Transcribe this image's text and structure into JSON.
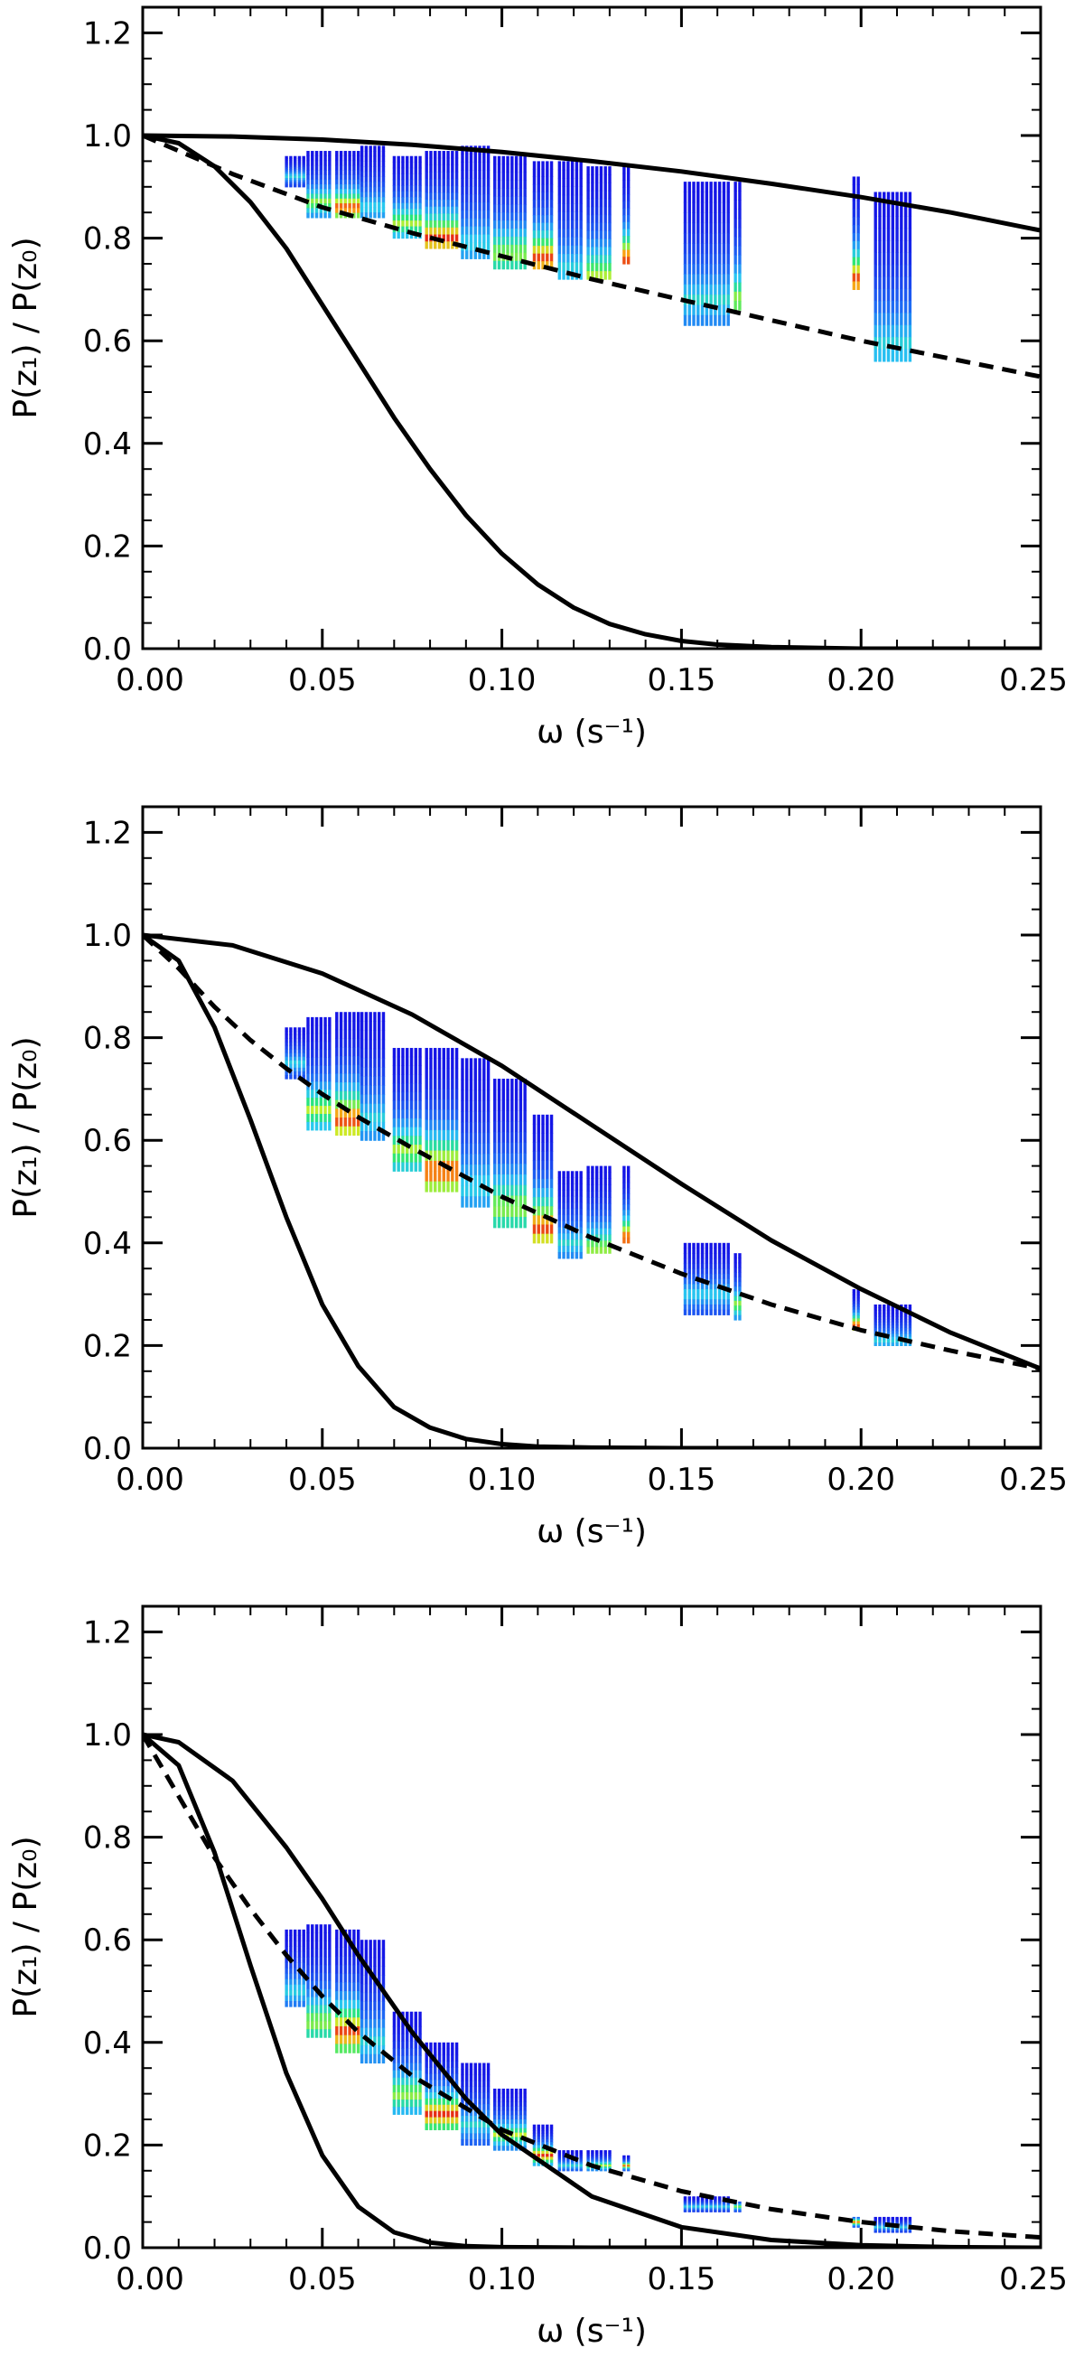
{
  "chart_data": [
    {
      "type": "line",
      "panel": "top",
      "xlabel": "ω (s⁻¹)",
      "ylabel": "P(z₁) / P(z₀)",
      "xlim": [
        0,
        0.25
      ],
      "ylim": [
        0,
        1.25
      ],
      "x_ticks": [
        "0.00",
        "0.05",
        "0.10",
        "0.15",
        "0.20",
        "0.25"
      ],
      "y_ticks": [
        "0.0",
        "0.2",
        "0.4",
        "0.6",
        "0.8",
        "1.0",
        "1.2"
      ],
      "x_tick_values": [
        0,
        0.05,
        0.1,
        0.15,
        0.2,
        0.25
      ],
      "y_tick_values": [
        0,
        0.2,
        0.4,
        0.6,
        0.8,
        1.0,
        1.2
      ],
      "grid": false,
      "series": [
        {
          "style": "solid",
          "x": [
            0,
            0.025,
            0.05,
            0.075,
            0.1,
            0.125,
            0.15,
            0.175,
            0.2,
            0.225,
            0.25
          ],
          "y": [
            1.0,
            0.998,
            0.992,
            0.982,
            0.968,
            0.95,
            0.93,
            0.906,
            0.88,
            0.85,
            0.815
          ]
        },
        {
          "style": "dashed",
          "x": [
            0,
            0.01,
            0.025,
            0.05,
            0.075,
            0.1,
            0.125,
            0.15,
            0.175,
            0.2,
            0.225,
            0.25
          ],
          "y": [
            1.0,
            0.97,
            0.925,
            0.86,
            0.81,
            0.765,
            0.72,
            0.68,
            0.64,
            0.6,
            0.565,
            0.53
          ]
        },
        {
          "style": "solid",
          "x": [
            0,
            0.01,
            0.02,
            0.03,
            0.04,
            0.05,
            0.06,
            0.07,
            0.08,
            0.09,
            0.1,
            0.11,
            0.12,
            0.13,
            0.14,
            0.15,
            0.16,
            0.175,
            0.2,
            0.25
          ],
          "y": [
            1.0,
            0.985,
            0.94,
            0.87,
            0.78,
            0.67,
            0.56,
            0.45,
            0.35,
            0.26,
            0.185,
            0.125,
            0.08,
            0.048,
            0.028,
            0.015,
            0.008,
            0.003,
            0.0,
            0.0
          ]
        }
      ],
      "scatter_segments": [
        {
          "x0": 0.04,
          "x1": 0.045,
          "top": 0.96,
          "bottom": 0.9,
          "core": 0.92
        },
        {
          "x0": 0.046,
          "x1": 0.053,
          "top": 0.97,
          "bottom": 0.84,
          "core": 0.87
        },
        {
          "x0": 0.054,
          "x1": 0.06,
          "top": 0.97,
          "bottom": 0.84,
          "core": 0.86
        },
        {
          "x0": 0.061,
          "x1": 0.068,
          "top": 0.98,
          "bottom": 0.84,
          "core": 0.86
        },
        {
          "x0": 0.07,
          "x1": 0.078,
          "top": 0.96,
          "bottom": 0.8,
          "core": 0.83
        },
        {
          "x0": 0.079,
          "x1": 0.088,
          "top": 0.97,
          "bottom": 0.78,
          "core": 0.8
        },
        {
          "x0": 0.089,
          "x1": 0.097,
          "top": 0.98,
          "bottom": 0.76,
          "core": 0.79
        },
        {
          "x0": 0.098,
          "x1": 0.107,
          "top": 0.96,
          "bottom": 0.74,
          "core": 0.77
        },
        {
          "x0": 0.109,
          "x1": 0.114,
          "top": 0.95,
          "bottom": 0.74,
          "core": 0.76
        },
        {
          "x0": 0.116,
          "x1": 0.123,
          "top": 0.95,
          "bottom": 0.72,
          "core": 0.74
        },
        {
          "x0": 0.124,
          "x1": 0.131,
          "top": 0.94,
          "bottom": 0.72,
          "core": 0.73
        },
        {
          "x0": 0.134,
          "x1": 0.136,
          "top": 0.94,
          "bottom": 0.75,
          "core": 0.76
        },
        {
          "x0": 0.151,
          "x1": 0.164,
          "top": 0.91,
          "bottom": 0.63,
          "core": 0.68
        },
        {
          "x0": 0.165,
          "x1": 0.167,
          "top": 0.91,
          "bottom": 0.66,
          "core": 0.68
        },
        {
          "x0": 0.198,
          "x1": 0.2,
          "top": 0.92,
          "bottom": 0.7,
          "core": 0.72
        },
        {
          "x0": 0.204,
          "x1": 0.214,
          "top": 0.89,
          "bottom": 0.56,
          "core": 0.59
        }
      ]
    },
    {
      "type": "line",
      "panel": "middle",
      "xlabel": "ω (s⁻¹)",
      "ylabel": "P(z₁) / P(z₀)",
      "xlim": [
        0,
        0.25
      ],
      "ylim": [
        0,
        1.25
      ],
      "x_ticks": [
        "0.00",
        "0.05",
        "0.10",
        "0.15",
        "0.20",
        "0.25"
      ],
      "y_ticks": [
        "0.0",
        "0.2",
        "0.4",
        "0.6",
        "0.8",
        "1.0",
        "1.2"
      ],
      "x_tick_values": [
        0,
        0.05,
        0.1,
        0.15,
        0.2,
        0.25
      ],
      "y_tick_values": [
        0,
        0.2,
        0.4,
        0.6,
        0.8,
        1.0,
        1.2
      ],
      "grid": false,
      "series": [
        {
          "style": "solid",
          "x": [
            0,
            0.025,
            0.05,
            0.075,
            0.1,
            0.125,
            0.15,
            0.175,
            0.2,
            0.225,
            0.25
          ],
          "y": [
            1.0,
            0.98,
            0.925,
            0.845,
            0.745,
            0.63,
            0.515,
            0.405,
            0.31,
            0.225,
            0.155
          ]
        },
        {
          "style": "dashed",
          "x": [
            0,
            0.01,
            0.02,
            0.03,
            0.04,
            0.05,
            0.06,
            0.075,
            0.1,
            0.125,
            0.15,
            0.175,
            0.2,
            0.225,
            0.25
          ],
          "y": [
            1.0,
            0.935,
            0.86,
            0.795,
            0.74,
            0.69,
            0.645,
            0.585,
            0.49,
            0.41,
            0.34,
            0.28,
            0.23,
            0.19,
            0.155
          ]
        },
        {
          "style": "solid",
          "x": [
            0,
            0.01,
            0.02,
            0.03,
            0.04,
            0.05,
            0.06,
            0.07,
            0.08,
            0.09,
            0.1,
            0.11,
            0.125,
            0.15,
            0.25
          ],
          "y": [
            1.0,
            0.95,
            0.82,
            0.64,
            0.45,
            0.28,
            0.16,
            0.08,
            0.04,
            0.018,
            0.008,
            0.003,
            0.001,
            0.0,
            0.0
          ]
        }
      ],
      "scatter_segments": [
        {
          "x0": 0.04,
          "x1": 0.045,
          "top": 0.82,
          "bottom": 0.72,
          "core": 0.75
        },
        {
          "x0": 0.046,
          "x1": 0.053,
          "top": 0.84,
          "bottom": 0.62,
          "core": 0.66
        },
        {
          "x0": 0.054,
          "x1": 0.06,
          "top": 0.85,
          "bottom": 0.61,
          "core": 0.64
        },
        {
          "x0": 0.061,
          "x1": 0.068,
          "top": 0.85,
          "bottom": 0.6,
          "core": 0.64
        },
        {
          "x0": 0.07,
          "x1": 0.078,
          "top": 0.78,
          "bottom": 0.54,
          "core": 0.58
        },
        {
          "x0": 0.079,
          "x1": 0.088,
          "top": 0.78,
          "bottom": 0.5,
          "core": 0.54
        },
        {
          "x0": 0.089,
          "x1": 0.097,
          "top": 0.76,
          "bottom": 0.47,
          "core": 0.51
        },
        {
          "x0": 0.098,
          "x1": 0.107,
          "top": 0.72,
          "bottom": 0.43,
          "core": 0.47
        },
        {
          "x0": 0.109,
          "x1": 0.114,
          "top": 0.65,
          "bottom": 0.4,
          "core": 0.43
        },
        {
          "x0": 0.116,
          "x1": 0.123,
          "top": 0.54,
          "bottom": 0.37,
          "core": 0.4
        },
        {
          "x0": 0.124,
          "x1": 0.131,
          "top": 0.55,
          "bottom": 0.38,
          "core": 0.39
        },
        {
          "x0": 0.134,
          "x1": 0.136,
          "top": 0.55,
          "bottom": 0.4,
          "core": 0.41
        },
        {
          "x0": 0.151,
          "x1": 0.164,
          "top": 0.4,
          "bottom": 0.26,
          "core": 0.3
        },
        {
          "x0": 0.165,
          "x1": 0.167,
          "top": 0.38,
          "bottom": 0.25,
          "core": 0.28
        },
        {
          "x0": 0.198,
          "x1": 0.2,
          "top": 0.31,
          "bottom": 0.23,
          "core": 0.24
        },
        {
          "x0": 0.204,
          "x1": 0.214,
          "top": 0.28,
          "bottom": 0.2,
          "core": 0.21
        }
      ]
    },
    {
      "type": "line",
      "panel": "bottom",
      "xlabel": "ω (s⁻¹)",
      "ylabel": "P(z₁) / P(z₀)",
      "xlim": [
        0,
        0.25
      ],
      "ylim": [
        0,
        1.25
      ],
      "x_ticks": [
        "0.00",
        "0.05",
        "0.10",
        "0.15",
        "0.20",
        "0.25"
      ],
      "y_ticks": [
        "0.0",
        "0.2",
        "0.4",
        "0.6",
        "0.8",
        "1.0",
        "1.2"
      ],
      "x_tick_values": [
        0,
        0.05,
        0.1,
        0.15,
        0.2,
        0.25
      ],
      "y_tick_values": [
        0,
        0.2,
        0.4,
        0.6,
        0.8,
        1.0,
        1.2
      ],
      "grid": false,
      "series": [
        {
          "style": "solid",
          "x": [
            0,
            0.01,
            0.025,
            0.04,
            0.05,
            0.06,
            0.075,
            0.09,
            0.1,
            0.125,
            0.15,
            0.175,
            0.2,
            0.225,
            0.25
          ],
          "y": [
            1.0,
            0.985,
            0.91,
            0.78,
            0.68,
            0.57,
            0.42,
            0.29,
            0.22,
            0.1,
            0.04,
            0.015,
            0.005,
            0.001,
            0.0
          ]
        },
        {
          "style": "dashed",
          "x": [
            0,
            0.01,
            0.02,
            0.03,
            0.04,
            0.05,
            0.06,
            0.075,
            0.1,
            0.125,
            0.15,
            0.175,
            0.2,
            0.225,
            0.25
          ],
          "y": [
            1.0,
            0.88,
            0.76,
            0.66,
            0.57,
            0.49,
            0.42,
            0.335,
            0.23,
            0.16,
            0.11,
            0.075,
            0.05,
            0.032,
            0.02
          ]
        },
        {
          "style": "solid",
          "x": [
            0,
            0.01,
            0.02,
            0.03,
            0.04,
            0.05,
            0.06,
            0.07,
            0.08,
            0.09,
            0.1,
            0.125,
            0.25
          ],
          "y": [
            1.0,
            0.94,
            0.77,
            0.55,
            0.34,
            0.18,
            0.08,
            0.03,
            0.01,
            0.003,
            0.001,
            0.0,
            0.0
          ]
        }
      ],
      "scatter_segments": [
        {
          "x0": 0.04,
          "x1": 0.045,
          "top": 0.62,
          "bottom": 0.47,
          "core": 0.5
        },
        {
          "x0": 0.046,
          "x1": 0.053,
          "top": 0.63,
          "bottom": 0.41,
          "core": 0.44
        },
        {
          "x0": 0.054,
          "x1": 0.06,
          "top": 0.62,
          "bottom": 0.38,
          "core": 0.42
        },
        {
          "x0": 0.061,
          "x1": 0.068,
          "top": 0.6,
          "bottom": 0.36,
          "core": 0.4
        },
        {
          "x0": 0.07,
          "x1": 0.078,
          "top": 0.46,
          "bottom": 0.26,
          "core": 0.3
        },
        {
          "x0": 0.079,
          "x1": 0.088,
          "top": 0.4,
          "bottom": 0.23,
          "core": 0.26
        },
        {
          "x0": 0.089,
          "x1": 0.097,
          "top": 0.36,
          "bottom": 0.2,
          "core": 0.24
        },
        {
          "x0": 0.098,
          "x1": 0.107,
          "top": 0.31,
          "bottom": 0.19,
          "core": 0.22
        },
        {
          "x0": 0.109,
          "x1": 0.114,
          "top": 0.24,
          "bottom": 0.16,
          "core": 0.18
        },
        {
          "x0": 0.116,
          "x1": 0.123,
          "top": 0.19,
          "bottom": 0.15,
          "core": 0.16
        },
        {
          "x0": 0.124,
          "x1": 0.131,
          "top": 0.19,
          "bottom": 0.15,
          "core": 0.16
        },
        {
          "x0": 0.134,
          "x1": 0.136,
          "top": 0.18,
          "bottom": 0.15,
          "core": 0.16
        },
        {
          "x0": 0.151,
          "x1": 0.164,
          "top": 0.1,
          "bottom": 0.07,
          "core": 0.08
        },
        {
          "x0": 0.165,
          "x1": 0.167,
          "top": 0.09,
          "bottom": 0.07,
          "core": 0.08
        },
        {
          "x0": 0.198,
          "x1": 0.2,
          "top": 0.06,
          "bottom": 0.04,
          "core": 0.05
        },
        {
          "x0": 0.204,
          "x1": 0.214,
          "top": 0.06,
          "bottom": 0.03,
          "core": 0.04
        }
      ]
    }
  ]
}
